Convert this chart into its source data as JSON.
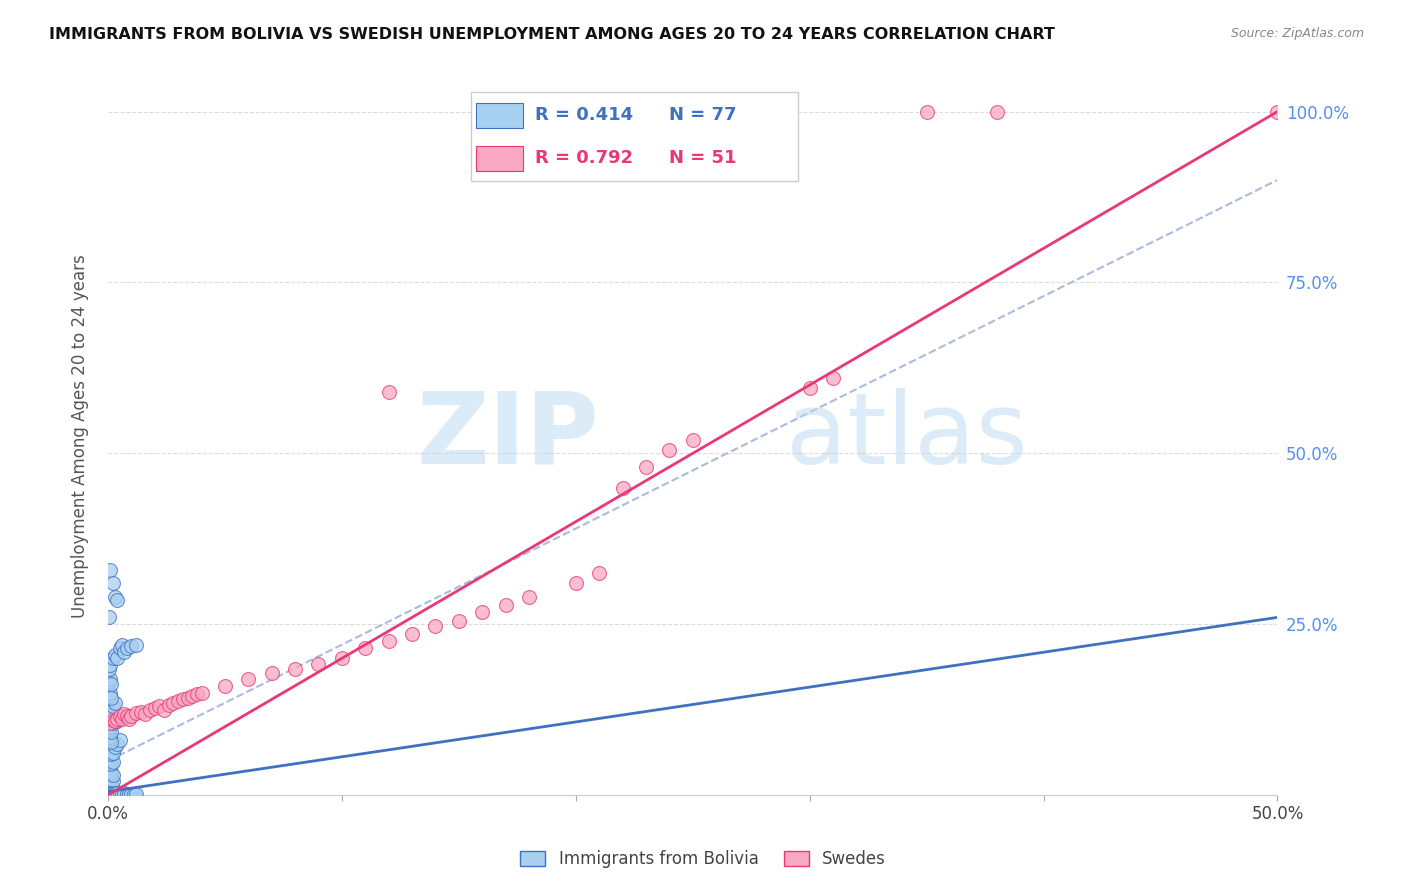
{
  "title": "IMMIGRANTS FROM BOLIVIA VS SWEDISH UNEMPLOYMENT AMONG AGES 20 TO 24 YEARS CORRELATION CHART",
  "source": "Source: ZipAtlas.com",
  "ylabel": "Unemployment Among Ages 20 to 24 years",
  "yticks": [
    0.0,
    0.25,
    0.5,
    0.75,
    1.0
  ],
  "ytick_labels": [
    "",
    "25.0%",
    "50.0%",
    "75.0%",
    "100.0%"
  ],
  "xtick_positions": [
    0.0,
    0.1,
    0.2,
    0.3,
    0.4,
    0.5
  ],
  "legend_r1": "R = 0.414",
  "legend_n1": "N = 77",
  "legend_r2": "R = 0.792",
  "legend_n2": "N = 51",
  "blue_color": "#a8d0f0",
  "pink_color": "#f8a8c0",
  "blue_line_color": "#4070c0",
  "pink_line_color": "#e83878",
  "blue_scatter": [
    [
      0.0005,
      0.005
    ],
    [
      0.001,
      0.01
    ],
    [
      0.0015,
      0.008
    ],
    [
      0.002,
      0.005
    ],
    [
      0.0005,
      0.015
    ],
    [
      0.001,
      0.018
    ],
    [
      0.0015,
      0.012
    ],
    [
      0.002,
      0.01
    ],
    [
      0.0005,
      0.025
    ],
    [
      0.001,
      0.03
    ],
    [
      0.0015,
      0.022
    ],
    [
      0.002,
      0.02
    ],
    [
      0.0005,
      0.035
    ],
    [
      0.001,
      0.04
    ],
    [
      0.0015,
      0.032
    ],
    [
      0.002,
      0.03
    ],
    [
      0.0005,
      0.05
    ],
    [
      0.001,
      0.055
    ],
    [
      0.0015,
      0.045
    ],
    [
      0.002,
      0.048
    ],
    [
      0.0005,
      0.065
    ],
    [
      0.001,
      0.07
    ],
    [
      0.0015,
      0.06
    ],
    [
      0.002,
      0.062
    ],
    [
      0.003,
      0.07
    ],
    [
      0.004,
      0.075
    ],
    [
      0.005,
      0.08
    ],
    [
      0.0005,
      0.08
    ],
    [
      0.001,
      0.085
    ],
    [
      0.0015,
      0.078
    ],
    [
      0.0005,
      0.095
    ],
    [
      0.001,
      0.1
    ],
    [
      0.0015,
      0.092
    ],
    [
      0.002,
      0.105
    ],
    [
      0.003,
      0.11
    ],
    [
      0.004,
      0.108
    ],
    [
      0.0005,
      0.12
    ],
    [
      0.001,
      0.125
    ],
    [
      0.0015,
      0.118
    ],
    [
      0.002,
      0.13
    ],
    [
      0.003,
      0.135
    ],
    [
      0.0005,
      0.145
    ],
    [
      0.001,
      0.15
    ],
    [
      0.0015,
      0.142
    ],
    [
      0.0005,
      0.165
    ],
    [
      0.001,
      0.17
    ],
    [
      0.0015,
      0.162
    ],
    [
      0.0005,
      0.185
    ],
    [
      0.001,
      0.19
    ],
    [
      0.002,
      0.2
    ],
    [
      0.003,
      0.205
    ],
    [
      0.004,
      0.2
    ],
    [
      0.005,
      0.215
    ],
    [
      0.006,
      0.22
    ],
    [
      0.007,
      0.21
    ],
    [
      0.008,
      0.215
    ],
    [
      0.01,
      0.218
    ],
    [
      0.012,
      0.22
    ],
    [
      0.0005,
      0.26
    ],
    [
      0.001,
      0.33
    ],
    [
      0.002,
      0.31
    ],
    [
      0.003,
      0.29
    ],
    [
      0.004,
      0.285
    ],
    [
      0.0005,
      0.002
    ],
    [
      0.001,
      0.003
    ],
    [
      0.0015,
      0.002
    ],
    [
      0.002,
      0.002
    ],
    [
      0.003,
      0.003
    ],
    [
      0.004,
      0.003
    ],
    [
      0.005,
      0.002
    ],
    [
      0.006,
      0.002
    ],
    [
      0.007,
      0.003
    ],
    [
      0.008,
      0.002
    ],
    [
      0.009,
      0.002
    ],
    [
      0.01,
      0.002
    ],
    [
      0.011,
      0.002
    ],
    [
      0.012,
      0.002
    ]
  ],
  "pink_scatter": [
    [
      0.001,
      0.105
    ],
    [
      0.002,
      0.11
    ],
    [
      0.003,
      0.108
    ],
    [
      0.004,
      0.112
    ],
    [
      0.005,
      0.115
    ],
    [
      0.006,
      0.112
    ],
    [
      0.007,
      0.118
    ],
    [
      0.008,
      0.115
    ],
    [
      0.009,
      0.112
    ],
    [
      0.01,
      0.115
    ],
    [
      0.012,
      0.12
    ],
    [
      0.014,
      0.122
    ],
    [
      0.016,
      0.118
    ],
    [
      0.018,
      0.125
    ],
    [
      0.02,
      0.128
    ],
    [
      0.022,
      0.13
    ],
    [
      0.024,
      0.125
    ],
    [
      0.026,
      0.132
    ],
    [
      0.028,
      0.135
    ],
    [
      0.03,
      0.138
    ],
    [
      0.032,
      0.14
    ],
    [
      0.034,
      0.142
    ],
    [
      0.036,
      0.145
    ],
    [
      0.038,
      0.148
    ],
    [
      0.04,
      0.15
    ],
    [
      0.05,
      0.16
    ],
    [
      0.06,
      0.17
    ],
    [
      0.07,
      0.178
    ],
    [
      0.08,
      0.185
    ],
    [
      0.09,
      0.192
    ],
    [
      0.1,
      0.2
    ],
    [
      0.11,
      0.215
    ],
    [
      0.12,
      0.225
    ],
    [
      0.13,
      0.235
    ],
    [
      0.14,
      0.248
    ],
    [
      0.15,
      0.255
    ],
    [
      0.16,
      0.268
    ],
    [
      0.17,
      0.278
    ],
    [
      0.18,
      0.29
    ],
    [
      0.2,
      0.31
    ],
    [
      0.21,
      0.325
    ],
    [
      0.22,
      0.45
    ],
    [
      0.23,
      0.48
    ],
    [
      0.24,
      0.505
    ],
    [
      0.25,
      0.52
    ],
    [
      0.12,
      0.59
    ],
    [
      0.3,
      0.595
    ],
    [
      0.31,
      0.61
    ],
    [
      0.35,
      1.0
    ],
    [
      0.38,
      1.0
    ],
    [
      0.5,
      1.0
    ]
  ],
  "blue_regression": [
    0.0,
    0.005,
    0.5,
    0.26
  ],
  "pink_regression": [
    0.0,
    0.0,
    0.5,
    1.0
  ],
  "dashed_regression": [
    0.0,
    0.05,
    0.5,
    0.9
  ],
  "background_color": "#ffffff",
  "grid_color": "#dddddd",
  "xlim": [
    0.0,
    0.5
  ],
  "ylim": [
    0.0,
    1.05
  ]
}
